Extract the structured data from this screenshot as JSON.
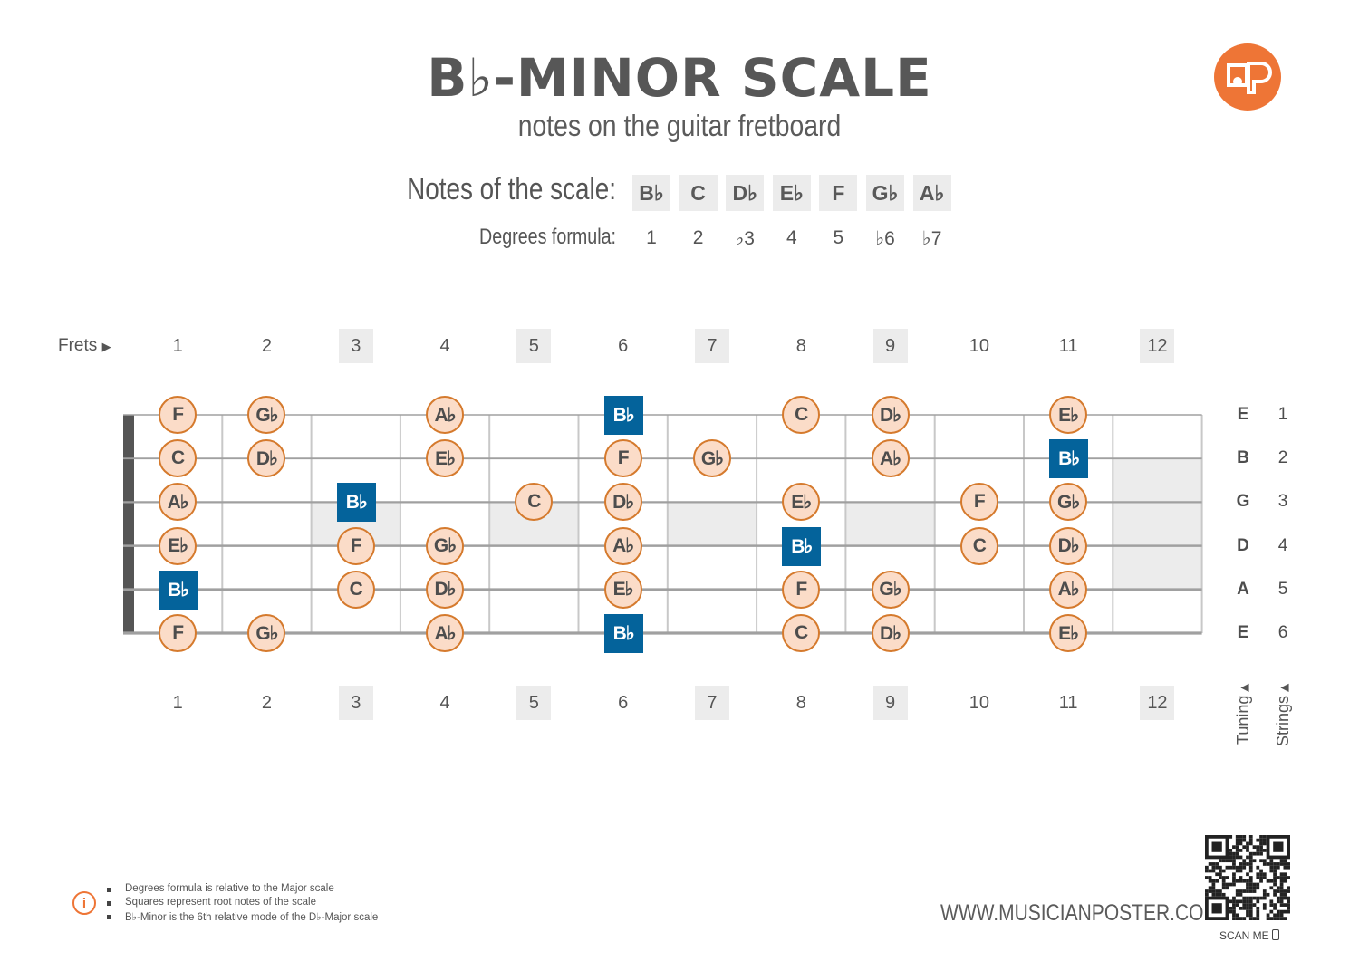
{
  "header": {
    "title": "B♭-MINOR SCALE",
    "subtitle": "notes on the guitar fretboard",
    "logo_icon": "musicianposter-logo"
  },
  "scale": {
    "notes_label": "Notes of the scale:",
    "degrees_label": "Degrees formula:",
    "notes": [
      "B♭",
      "C",
      "D♭",
      "E♭",
      "F",
      "G♭",
      "A♭"
    ],
    "degrees": [
      "1",
      "2",
      "♭3",
      "4",
      "5",
      "♭6",
      "♭7"
    ]
  },
  "fretboard": {
    "frets_label": "Frets",
    "frets": [
      "1",
      "2",
      "3",
      "4",
      "5",
      "6",
      "7",
      "8",
      "9",
      "10",
      "11",
      "12"
    ],
    "inlay_frets": [
      "3",
      "5",
      "7",
      "9",
      "12"
    ],
    "tuning_label": "Tuning",
    "strings_label": "Strings",
    "tuning": [
      "E",
      "B",
      "G",
      "D",
      "A",
      "E"
    ],
    "string_numbers": [
      "1",
      "2",
      "3",
      "4",
      "5",
      "6"
    ],
    "strings": [
      {
        "notes": [
          {
            "fret": 1,
            "note": "F",
            "root": false
          },
          {
            "fret": 2,
            "note": "G♭",
            "root": false
          },
          {
            "fret": 4,
            "note": "A♭",
            "root": false
          },
          {
            "fret": 6,
            "note": "B♭",
            "root": true
          },
          {
            "fret": 8,
            "note": "C",
            "root": false
          },
          {
            "fret": 9,
            "note": "D♭",
            "root": false
          },
          {
            "fret": 11,
            "note": "E♭",
            "root": false
          }
        ]
      },
      {
        "notes": [
          {
            "fret": 1,
            "note": "C",
            "root": false
          },
          {
            "fret": 2,
            "note": "D♭",
            "root": false
          },
          {
            "fret": 4,
            "note": "E♭",
            "root": false
          },
          {
            "fret": 6,
            "note": "F",
            "root": false
          },
          {
            "fret": 7,
            "note": "G♭",
            "root": false
          },
          {
            "fret": 9,
            "note": "A♭",
            "root": false
          },
          {
            "fret": 11,
            "note": "B♭",
            "root": true
          }
        ]
      },
      {
        "notes": [
          {
            "fret": 1,
            "note": "A♭",
            "root": false
          },
          {
            "fret": 3,
            "note": "B♭",
            "root": true
          },
          {
            "fret": 5,
            "note": "C",
            "root": false
          },
          {
            "fret": 6,
            "note": "D♭",
            "root": false
          },
          {
            "fret": 8,
            "note": "E♭",
            "root": false
          },
          {
            "fret": 10,
            "note": "F",
            "root": false
          },
          {
            "fret": 11,
            "note": "G♭",
            "root": false
          }
        ]
      },
      {
        "notes": [
          {
            "fret": 1,
            "note": "E♭",
            "root": false
          },
          {
            "fret": 3,
            "note": "F",
            "root": false
          },
          {
            "fret": 4,
            "note": "G♭",
            "root": false
          },
          {
            "fret": 6,
            "note": "A♭",
            "root": false
          },
          {
            "fret": 8,
            "note": "B♭",
            "root": true
          },
          {
            "fret": 10,
            "note": "C",
            "root": false
          },
          {
            "fret": 11,
            "note": "D♭",
            "root": false
          }
        ]
      },
      {
        "notes": [
          {
            "fret": 1,
            "note": "B♭",
            "root": true
          },
          {
            "fret": 3,
            "note": "C",
            "root": false
          },
          {
            "fret": 4,
            "note": "D♭",
            "root": false
          },
          {
            "fret": 6,
            "note": "E♭",
            "root": false
          },
          {
            "fret": 8,
            "note": "F",
            "root": false
          },
          {
            "fret": 9,
            "note": "G♭",
            "root": false
          },
          {
            "fret": 11,
            "note": "A♭",
            "root": false
          }
        ]
      },
      {
        "notes": [
          {
            "fret": 1,
            "note": "F",
            "root": false
          },
          {
            "fret": 2,
            "note": "G♭",
            "root": false
          },
          {
            "fret": 4,
            "note": "A♭",
            "root": false
          },
          {
            "fret": 6,
            "note": "B♭",
            "root": true
          },
          {
            "fret": 8,
            "note": "C",
            "root": false
          },
          {
            "fret": 9,
            "note": "D♭",
            "root": false
          },
          {
            "fret": 11,
            "note": "E♭",
            "root": false
          }
        ]
      }
    ]
  },
  "footer": {
    "notes": [
      "Degrees formula is relative to the Major scale",
      "Squares represent root notes of the scale",
      "B♭-Minor is the 6th relative mode of the D♭-Major scale"
    ],
    "info_icon": "info-icon",
    "url": "WWW.MUSICIANPOSTER.COM",
    "scan_label": "SCAN ME",
    "qr_icon": "qr-code-icon",
    "phone_icon": "phone-icon"
  },
  "colors": {
    "accent": "#ee7536",
    "root_fill": "#04639b",
    "note_fill": "#fbdcc8",
    "note_border": "#d57a2d",
    "inlay": "#ececec"
  }
}
